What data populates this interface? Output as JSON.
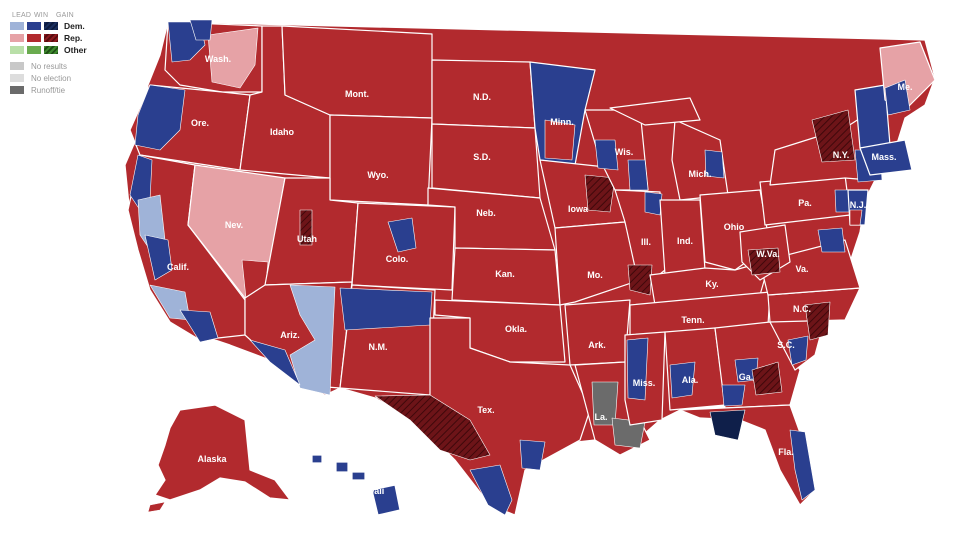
{
  "colors": {
    "dem_lead": "#9fb3d8",
    "dem_win": "#2a3f8f",
    "dem_gain": "#0f1f4a",
    "rep_lead": "#e6a2a6",
    "rep_win": "#b22a2e",
    "rep_gain": "#5e0f14",
    "other_lead": "#b9dfa8",
    "other_win": "#6aab4f",
    "other_gain": "#2f6b22",
    "no_results": "#c8c8c8",
    "no_election": "#dddddd",
    "runoff": "#6b6b6b"
  },
  "legend": {
    "col_lead": "LEAD",
    "col_win": "WIN",
    "col_gain": "GAIN",
    "dem": "Dem.",
    "rep": "Rep.",
    "other": "Other",
    "no_results": "No results",
    "no_election": "No election",
    "runoff": "Runoff/tie"
  },
  "states": {
    "wa": "Wash.",
    "or": "Ore.",
    "ca": "Calif.",
    "nv": "Nev.",
    "id": "Idaho",
    "mt": "Mont.",
    "wy": "Wyo.",
    "ut": "Utah",
    "az": "Ariz.",
    "co": "Colo.",
    "nm": "N.M.",
    "nd": "N.D.",
    "sd": "S.D.",
    "ne": "Neb.",
    "ks": "Kan.",
    "ok": "Okla.",
    "tx": "Tex.",
    "mn": "Minn.",
    "ia": "Iowa",
    "mo": "Mo.",
    "ar": "Ark.",
    "la": "La.",
    "wi": "Wis.",
    "il": "Ill.",
    "ms": "Miss.",
    "mi": "Mich.",
    "in": "Ind.",
    "oh": "Ohio",
    "ky": "Ky.",
    "tn": "Tenn.",
    "al": "Ala.",
    "ga": "Ga.",
    "fl": "Fla.",
    "sc": "S.C.",
    "nc": "N.C.",
    "va": "Va.",
    "wv": "W.Va.",
    "pa": "Pa.",
    "ny": "N.Y.",
    "nj": "N.J.",
    "ma": "Mass.",
    "me": "Me.",
    "ak": "Alaska",
    "hi": "Hawaii"
  }
}
